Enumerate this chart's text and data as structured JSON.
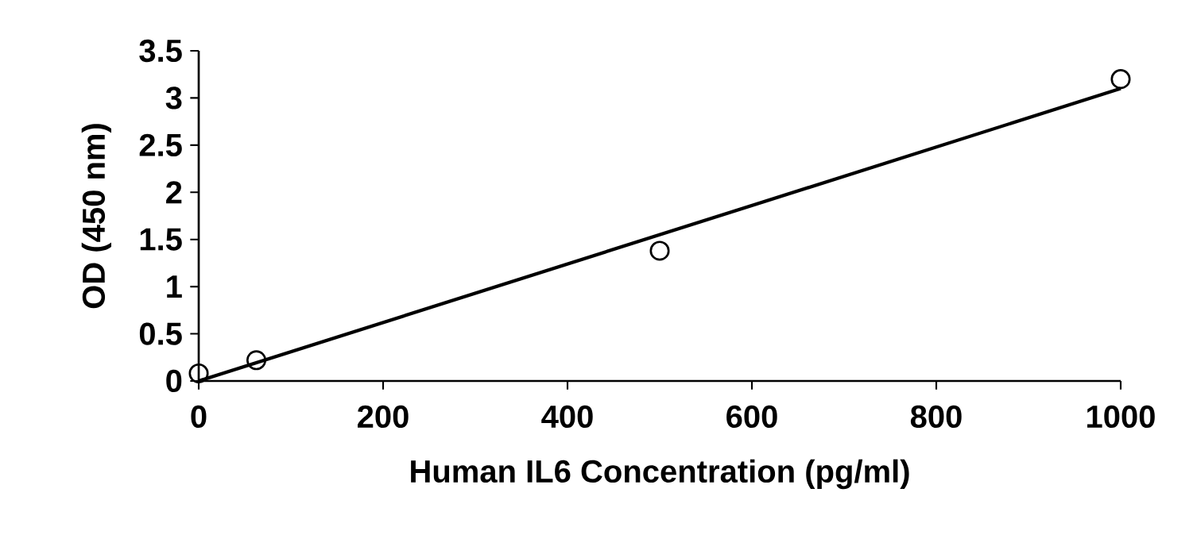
{
  "chart_data": {
    "type": "scatter",
    "xlabel": "Human IL6 Concentration (pg/ml)",
    "ylabel": "OD (450 nm)",
    "series": [
      {
        "x": [
          0,
          62.5,
          500,
          1000
        ],
        "values": [
          0.08,
          0.22,
          1.38,
          3.2
        ],
        "color": "#000000",
        "marker": "circle"
      },
      {
        "type": "line",
        "x": [
          0,
          1000
        ],
        "values": [
          0,
          3.1
        ],
        "color": "#000000",
        "marker": "none",
        "line_style": "solid"
      }
    ],
    "xlim": [
      0,
      1000
    ],
    "xticks": [
      0,
      200,
      400,
      600,
      800,
      1000
    ],
    "ylim": [
      0,
      3.5
    ],
    "yticks": [
      0,
      0.5,
      1,
      1.5,
      2,
      2.5,
      3,
      3.5
    ],
    "grid": false
  }
}
